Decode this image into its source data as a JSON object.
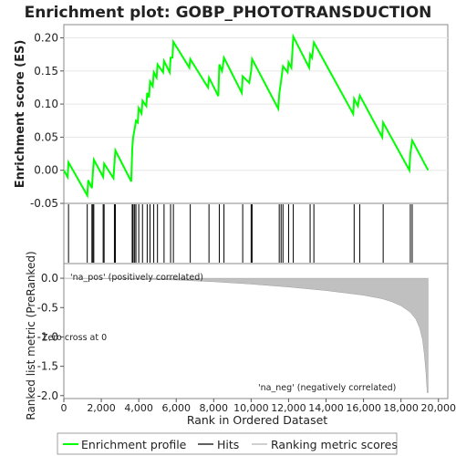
{
  "chart_data": {
    "type": "line",
    "title": "Enrichment plot: GOBP_PHOTOTRANSDUCTION",
    "es_panel": {
      "ylabel": "Enrichment score (ES)",
      "ylim": [
        -0.05,
        0.22
      ],
      "yticks": [
        "-0.05",
        "0.00",
        "0.05",
        "0.10",
        "0.15",
        "0.20"
      ],
      "ytick_values": [
        -0.05,
        0.0,
        0.05,
        0.1,
        0.15,
        0.2
      ],
      "line_color": "#00ff00",
      "points": [
        [
          0,
          0.0
        ],
        [
          200,
          -0.01
        ],
        [
          250,
          0.012
        ],
        [
          1250,
          -0.038
        ],
        [
          1300,
          -0.015
        ],
        [
          1500,
          -0.027
        ],
        [
          1550,
          -0.005
        ],
        [
          1600,
          0.016
        ],
        [
          2100,
          -0.01
        ],
        [
          2150,
          0.01
        ],
        [
          2650,
          -0.012
        ],
        [
          2750,
          0.03
        ],
        [
          3600,
          -0.017
        ],
        [
          3650,
          0.032
        ],
        [
          3700,
          0.05
        ],
        [
          3780,
          0.062
        ],
        [
          3850,
          0.075
        ],
        [
          3950,
          0.072
        ],
        [
          4000,
          0.094
        ],
        [
          4150,
          0.086
        ],
        [
          4200,
          0.105
        ],
        [
          4400,
          0.097
        ],
        [
          4450,
          0.117
        ],
        [
          4550,
          0.11
        ],
        [
          4600,
          0.134
        ],
        [
          4750,
          0.127
        ],
        [
          4800,
          0.148
        ],
        [
          4950,
          0.14
        ],
        [
          5000,
          0.16
        ],
        [
          5300,
          0.148
        ],
        [
          5350,
          0.165
        ],
        [
          5650,
          0.148
        ],
        [
          5700,
          0.17
        ],
        [
          5800,
          0.17
        ],
        [
          5850,
          0.194
        ],
        [
          6700,
          0.155
        ],
        [
          6750,
          0.168
        ],
        [
          7700,
          0.125
        ],
        [
          7750,
          0.14
        ],
        [
          8250,
          0.112
        ],
        [
          8300,
          0.16
        ],
        [
          8450,
          0.15
        ],
        [
          8550,
          0.17
        ],
        [
          9500,
          0.117
        ],
        [
          9550,
          0.142
        ],
        [
          9900,
          0.132
        ],
        [
          10000,
          0.15
        ],
        [
          10050,
          0.168
        ],
        [
          11450,
          0.093
        ],
        [
          11500,
          0.115
        ],
        [
          11600,
          0.135
        ],
        [
          11700,
          0.157
        ],
        [
          11950,
          0.148
        ],
        [
          12000,
          0.163
        ],
        [
          12150,
          0.155
        ],
        [
          12250,
          0.202
        ],
        [
          13100,
          0.155
        ],
        [
          13150,
          0.175
        ],
        [
          13250,
          0.17
        ],
        [
          13350,
          0.193
        ],
        [
          15450,
          0.085
        ],
        [
          15500,
          0.108
        ],
        [
          15700,
          0.097
        ],
        [
          15800,
          0.113
        ],
        [
          17000,
          0.05
        ],
        [
          17050,
          0.072
        ],
        [
          18450,
          0.0
        ],
        [
          18500,
          0.025
        ],
        [
          18600,
          0.045
        ],
        [
          19450,
          0.0
        ]
      ]
    },
    "hits": [
      250,
      1250,
      1500,
      1550,
      1600,
      2100,
      2150,
      2700,
      2750,
      3650,
      3700,
      3780,
      3850,
      4000,
      4200,
      4450,
      4600,
      4800,
      5000,
      5350,
      5700,
      5850,
      6750,
      7750,
      8300,
      8550,
      9550,
      10000,
      10050,
      11500,
      11600,
      11700,
      12000,
      12250,
      13150,
      13350,
      15500,
      15800,
      17050,
      18500,
      18600
    ],
    "metric_panel": {
      "ylabel": "Ranked list metric (PreRanked)",
      "ylim": [
        -2.05,
        0.25
      ],
      "yticks": [
        "0.0",
        "-0.5",
        "-1.0",
        "-1.5",
        "-2.0"
      ],
      "ytick_values": [
        0.0,
        -0.5,
        -1.0,
        -1.5,
        -2.0
      ],
      "curve": [
        [
          0,
          0.0
        ],
        [
          3000,
          -0.01
        ],
        [
          6000,
          -0.03
        ],
        [
          8000,
          -0.06
        ],
        [
          10000,
          -0.1
        ],
        [
          12000,
          -0.15
        ],
        [
          14000,
          -0.21
        ],
        [
          16000,
          -0.29
        ],
        [
          17000,
          -0.35
        ],
        [
          17500,
          -0.4
        ],
        [
          18000,
          -0.47
        ],
        [
          18500,
          -0.58
        ],
        [
          18800,
          -0.7
        ],
        [
          19000,
          -0.85
        ],
        [
          19150,
          -1.05
        ],
        [
          19250,
          -1.3
        ],
        [
          19330,
          -1.6
        ],
        [
          19400,
          -1.95
        ],
        [
          19450,
          -1.95
        ]
      ],
      "pos_label": "'na_pos' (positively correlated)",
      "neg_label": "'na_neg' (negatively correlated)",
      "zero_cross_label": "Zero cross at 0"
    },
    "x_axis": {
      "xlabel": "Rank in Ordered Dataset",
      "xlim": [
        0,
        20500
      ],
      "xticks": [
        "0",
        "2,000",
        "4,000",
        "6,000",
        "8,000",
        "10,000",
        "12,000",
        "14,000",
        "16,000",
        "18,000",
        "20,000"
      ],
      "xtick_values": [
        0,
        2000,
        4000,
        6000,
        8000,
        10000,
        12000,
        14000,
        16000,
        18000,
        20000
      ]
    },
    "heat_bar_colors": [
      "#d0d0ff",
      "#d0d0ff",
      "#c8c8fb",
      "#b4b4f8",
      "#8a8af6",
      "#6a6af2",
      "#4a4ae8",
      "#0000d0"
    ],
    "legend": {
      "placement": "bottom",
      "entries": [
        {
          "label": "Enrichment profile",
          "color": "#00ff00"
        },
        {
          "label": "Hits",
          "color": "#000000"
        },
        {
          "label": "Ranking metric scores",
          "color": "#c0c0c0"
        }
      ]
    }
  }
}
